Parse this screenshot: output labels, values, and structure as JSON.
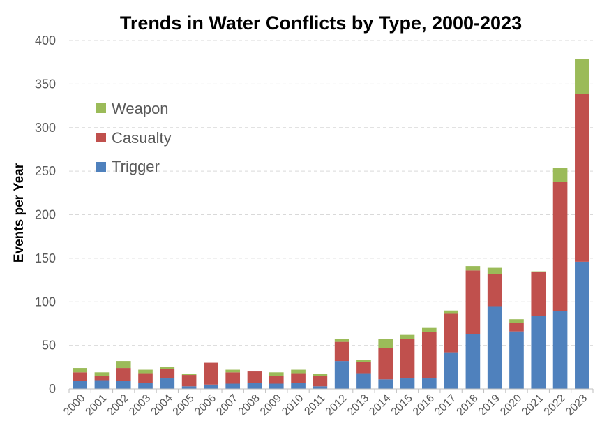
{
  "chart_data": {
    "type": "bar",
    "stacked": true,
    "title": "Trends in Water Conflicts by Type, 2000-2023",
    "xlabel": "",
    "ylabel": "Events per Year",
    "ylim": [
      0,
      400
    ],
    "yticks": [
      0,
      50,
      100,
      150,
      200,
      250,
      300,
      350,
      400
    ],
    "grid": true,
    "legend_position": "top-left",
    "categories": [
      "2000",
      "2001",
      "2002",
      "2003",
      "2004",
      "2005",
      "2006",
      "2007",
      "2008",
      "2009",
      "2010",
      "2011",
      "2012",
      "2013",
      "2014",
      "2015",
      "2016",
      "2017",
      "2018",
      "2019",
      "2020",
      "2021",
      "2022",
      "2023"
    ],
    "series": [
      {
        "name": "Trigger",
        "color": "#4f81bd",
        "values": [
          9,
          10,
          9,
          7,
          12,
          3,
          5,
          6,
          7,
          6,
          7,
          3,
          32,
          18,
          11,
          12,
          12,
          42,
          63,
          95,
          66,
          84,
          89,
          146
        ]
      },
      {
        "name": "Casualty",
        "color": "#c0504d",
        "values": [
          10,
          5,
          15,
          11,
          11,
          13,
          25,
          13,
          13,
          9,
          11,
          12,
          22,
          13,
          36,
          45,
          53,
          45,
          73,
          37,
          10,
          50,
          149,
          193
        ]
      },
      {
        "name": "Weapon",
        "color": "#9bbb59",
        "values": [
          5,
          4,
          8,
          4,
          2,
          1,
          0,
          3,
          0,
          4,
          4,
          2,
          3,
          2,
          10,
          5,
          5,
          3,
          5,
          7,
          4,
          1,
          16,
          40
        ]
      }
    ],
    "legend": [
      {
        "label": "Weapon",
        "color": "#9bbb59"
      },
      {
        "label": "Casualty",
        "color": "#c0504d"
      },
      {
        "label": "Trigger",
        "color": "#4f81bd"
      }
    ]
  }
}
